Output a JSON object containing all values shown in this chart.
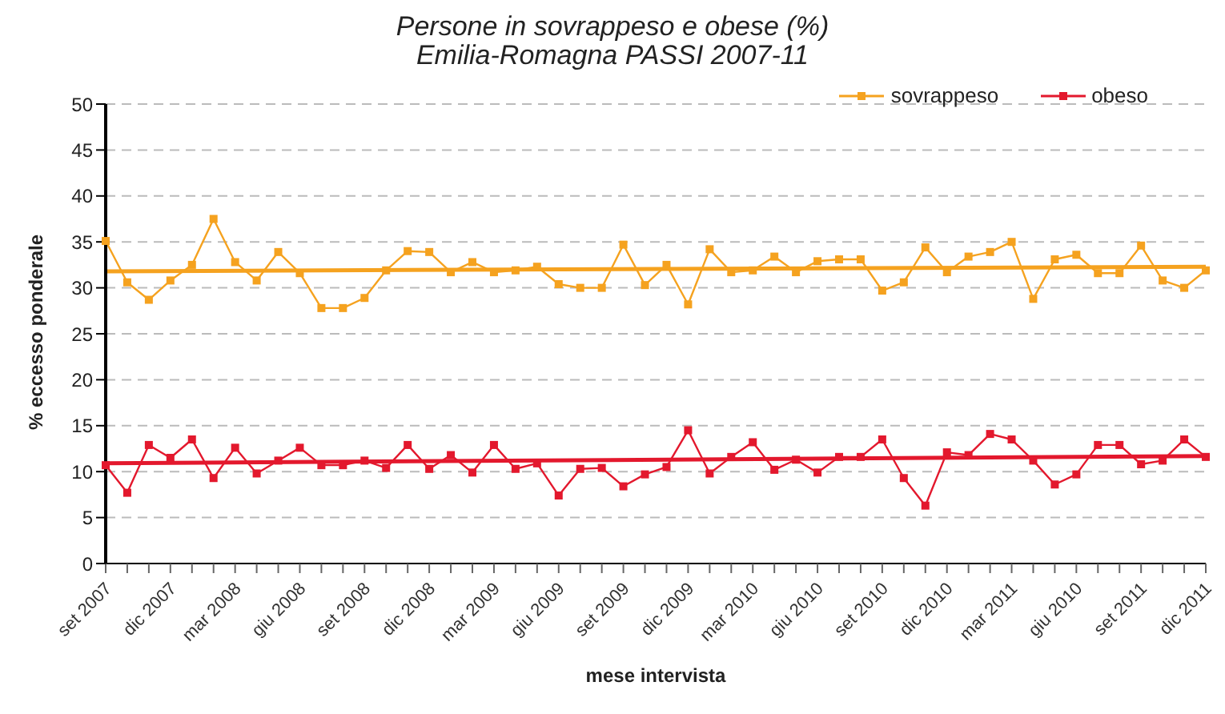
{
  "chart_data": {
    "type": "line",
    "title": "Persone in sovrappeso e obese (%)",
    "subtitle": "Emilia-Romagna PASSI 2007-11",
    "xlabel": "mese intervista",
    "ylabel": "% eccesso ponderale",
    "categories": [
      "set 2007",
      null,
      null,
      "dic 2007",
      null,
      null,
      "mar 2008",
      null,
      null,
      "giu 2008",
      null,
      null,
      "set 2008",
      null,
      null,
      "dic 2008",
      null,
      null,
      "mar 2009",
      null,
      null,
      "giu 2009",
      null,
      null,
      "set 2009",
      null,
      null,
      "dic 2009",
      null,
      null,
      "mar 2010",
      null,
      null,
      "giu 2010",
      null,
      null,
      "set 2010",
      null,
      null,
      "dic 2010",
      null,
      null,
      "mar 2011",
      null,
      null,
      "giu 2010",
      null,
      null,
      "set 2011",
      null,
      null,
      "dic 2011"
    ],
    "series": [
      {
        "name": "sovrappeso",
        "color": "#f5a21f",
        "values": [
          35.1,
          30.6,
          28.7,
          30.8,
          32.5,
          37.5,
          32.8,
          30.8,
          33.9,
          31.6,
          27.8,
          27.8,
          28.9,
          31.9,
          34.0,
          33.9,
          31.7,
          32.8,
          31.7,
          31.9,
          32.3,
          30.4,
          30.0,
          30.0,
          34.7,
          30.3,
          32.5,
          28.2,
          34.2,
          31.7,
          31.9,
          33.4,
          31.7,
          32.9,
          33.1,
          33.1,
          29.7,
          30.6,
          34.4,
          31.7,
          33.4,
          33.9,
          35.0,
          28.8,
          33.1,
          33.6,
          31.6,
          31.6,
          34.6,
          30.8,
          30.0,
          31.9
        ]
      },
      {
        "name": "obeso",
        "color": "#e3182d",
        "values": [
          10.7,
          7.7,
          12.9,
          11.5,
          13.5,
          9.3,
          12.6,
          9.8,
          11.2,
          12.6,
          10.7,
          10.7,
          11.2,
          10.4,
          12.9,
          10.3,
          11.8,
          9.9,
          12.9,
          10.3,
          10.9,
          7.4,
          10.3,
          10.4,
          8.4,
          9.7,
          10.5,
          14.5,
          9.8,
          11.6,
          13.2,
          10.2,
          11.3,
          9.9,
          11.6,
          11.6,
          13.5,
          9.3,
          6.3,
          12.1,
          11.8,
          14.1,
          13.5,
          11.2,
          8.6,
          9.7,
          12.9,
          12.9,
          10.8,
          11.2,
          13.5,
          11.6
        ]
      },
      {
        "type": "line",
        "color": "#f5a21f",
        "x": [
          "set 2007",
          "dic 2011"
        ],
        "values": [
          31.8,
          32.3
        ],
        "marker": "none"
      },
      {
        "type": "line",
        "color": "#e3182d",
        "x": [
          "set 2007",
          "dic 2011"
        ],
        "values": [
          10.9,
          11.7
        ],
        "marker": "none"
      }
    ],
    "ylim": [
      0,
      50
    ],
    "yticks": [
      0,
      5,
      10,
      15,
      20,
      25,
      30,
      35,
      40,
      45,
      50
    ],
    "grid": "y",
    "legend": "top right",
    "marker": "square",
    "line_style": "solid"
  }
}
